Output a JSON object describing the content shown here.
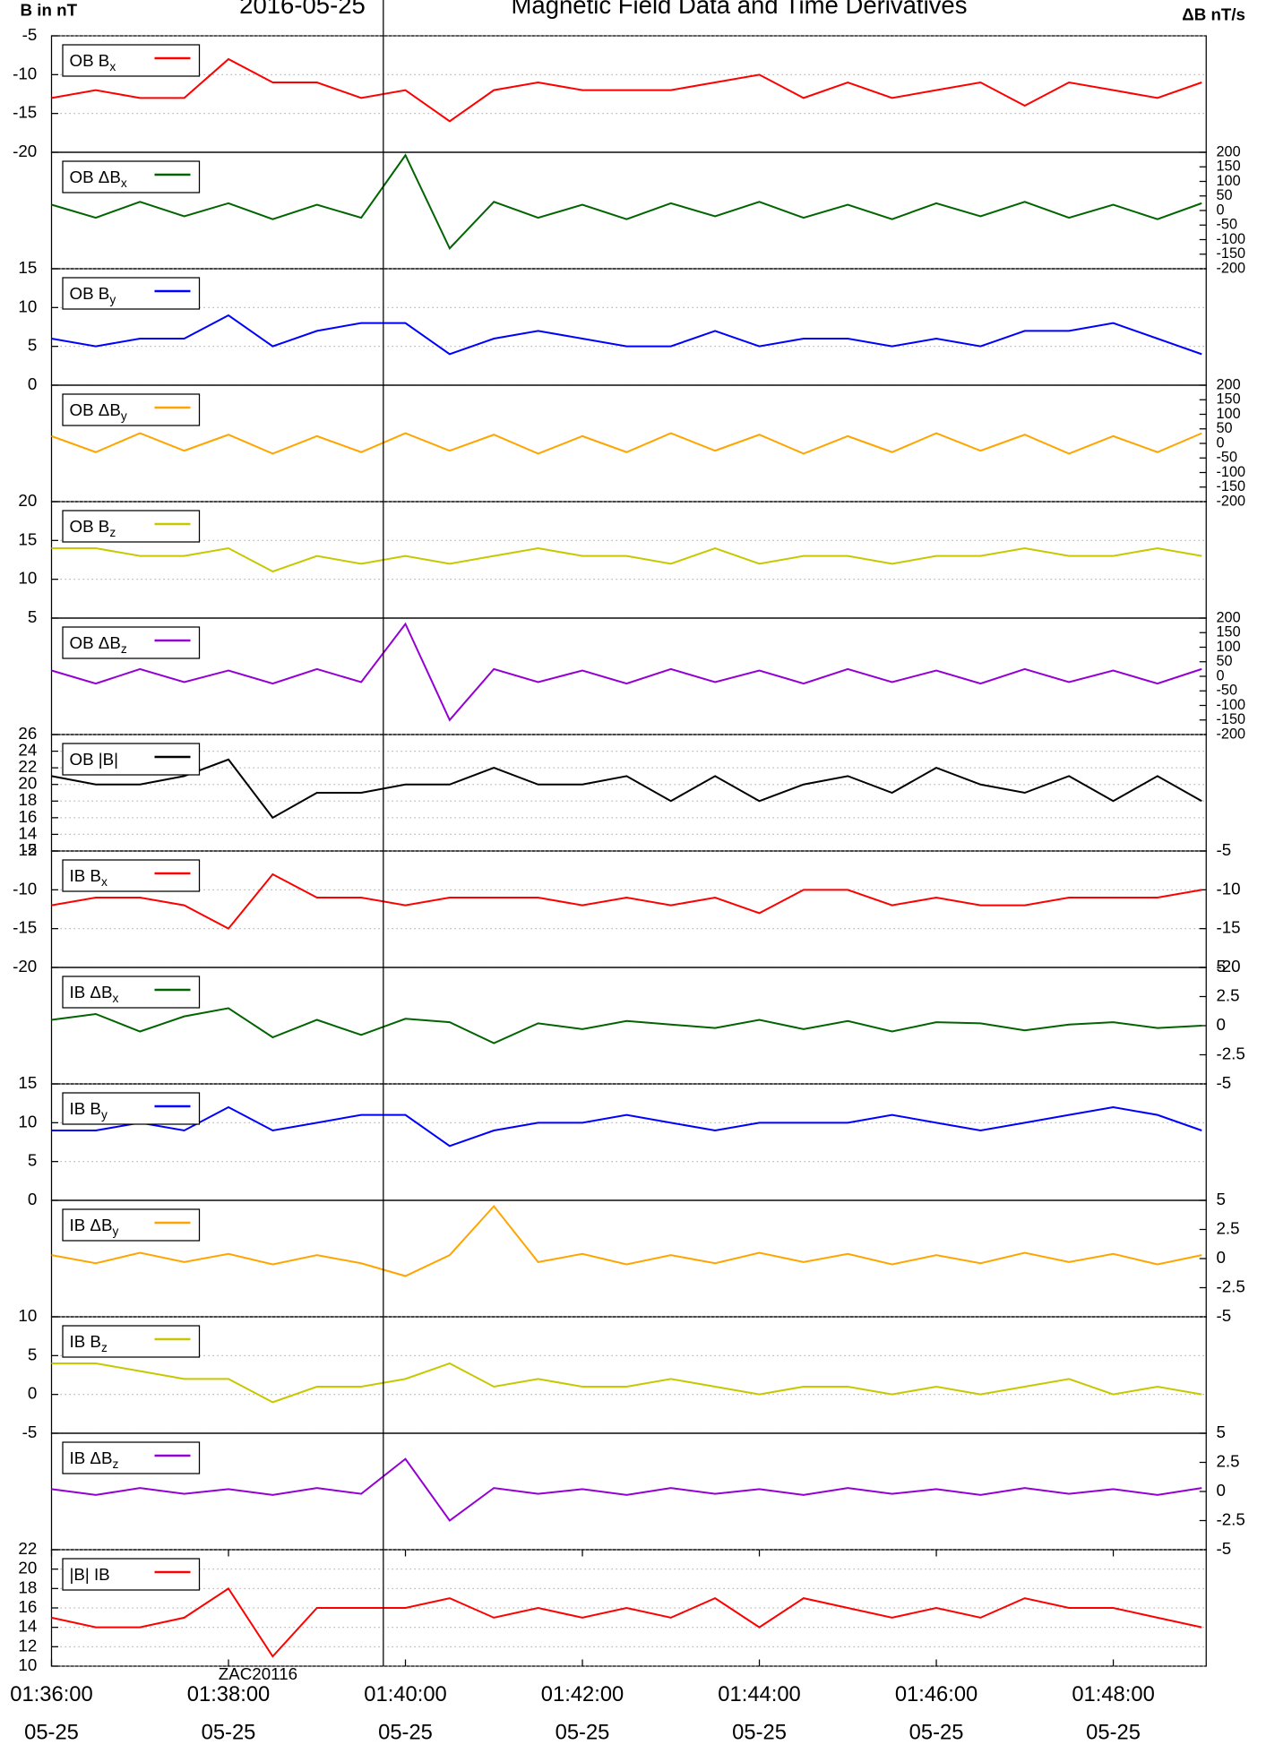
{
  "chart_data": {
    "type": "line",
    "title": "Magnetic Field Data and Time Derivatives",
    "date": "2016-05-25",
    "left_axis_label": "B in nT",
    "right_axis_label": "ΔB nT/s",
    "x": [
      "01:36:00",
      "01:36:30",
      "01:37:00",
      "01:37:30",
      "01:38:00",
      "01:38:30",
      "01:39:00",
      "01:39:30",
      "01:40:00",
      "01:40:30",
      "01:41:00",
      "01:41:30",
      "01:42:00",
      "01:42:30",
      "01:43:00",
      "01:43:30",
      "01:44:00",
      "01:44:30",
      "01:45:00",
      "01:45:30",
      "01:46:00",
      "01:46:30",
      "01:47:00",
      "01:47:30",
      "01:48:00",
      "01:48:30",
      "01:49:00"
    ],
    "xlim": [
      "01:36:00",
      "01:49:03"
    ],
    "xticks": [
      "01:36:00",
      "01:38:00",
      "01:40:00",
      "01:42:00",
      "01:44:00",
      "01:46:00",
      "01:48:00"
    ],
    "xtick_date": "05-25",
    "event_time": "01:39:45",
    "annotation": {
      "text": "ZAC20116",
      "x": "01:38:20"
    },
    "panels": [
      {
        "series": [
          {
            "name": "OB B",
            "name_sub": "x",
            "color": "#ff0000",
            "values": [
              -13,
              -12,
              -13,
              -13,
              -8,
              -11,
              -11,
              -13,
              -12,
              -16,
              -12,
              -11,
              -12,
              -12,
              -12,
              -11,
              -10,
              -13,
              -11,
              -13,
              -12,
              -11,
              -14,
              -11,
              -12,
              -13,
              -11
            ]
          }
        ],
        "ylim": [
          -20,
          -5
        ],
        "yticks": [
          -20,
          -15,
          -10,
          -5
        ],
        "yaxis": "left",
        "grid": true
      },
      {
        "series": [
          {
            "name": "OB ΔB",
            "name_sub": "x",
            "color": "#006400",
            "values": [
              20,
              -25,
              30,
              -20,
              25,
              -30,
              20,
              -25,
              190,
              -130,
              30,
              -25,
              20,
              -30,
              25,
              -20,
              30,
              -25,
              20,
              -30,
              25,
              -20,
              30,
              -25,
              20,
              -30,
              25
            ]
          }
        ],
        "ylim": [
          -200,
          200
        ],
        "yticks": [
          -200,
          -150,
          -100,
          -50,
          0,
          50,
          100,
          150,
          200
        ],
        "yaxis": "right",
        "grid": false
      },
      {
        "series": [
          {
            "name": "OB B",
            "name_sub": "y",
            "color": "#0000ff",
            "values": [
              6,
              5,
              6,
              6,
              9,
              5,
              7,
              8,
              8,
              4,
              6,
              7,
              6,
              5,
              5,
              7,
              5,
              6,
              6,
              5,
              6,
              5,
              7,
              7,
              8,
              6,
              4
            ]
          }
        ],
        "ylim": [
          0,
          15
        ],
        "yticks": [
          0,
          5,
          10,
          15
        ],
        "yaxis": "left",
        "grid": true
      },
      {
        "series": [
          {
            "name": "OB ΔB",
            "name_sub": "y",
            "color": "#ffa500",
            "values": [
              25,
              -30,
              35,
              -25,
              30,
              -35,
              25,
              -30,
              35,
              -25,
              30,
              -35,
              25,
              -30,
              35,
              -25,
              30,
              -35,
              25,
              -30,
              35,
              -25,
              30,
              -35,
              25,
              -30,
              35
            ]
          }
        ],
        "ylim": [
          -200,
          200
        ],
        "yticks": [
          -200,
          -150,
          -100,
          -50,
          0,
          50,
          100,
          150,
          200
        ],
        "yaxis": "right",
        "grid": false
      },
      {
        "series": [
          {
            "name": "OB B",
            "name_sub": "z",
            "color": "#c8c800",
            "values": [
              14,
              14,
              13,
              13,
              14,
              11,
              13,
              12,
              13,
              12,
              13,
              14,
              13,
              13,
              12,
              14,
              12,
              13,
              13,
              12,
              13,
              13,
              14,
              13,
              13,
              14,
              13
            ]
          }
        ],
        "ylim": [
          5,
          20
        ],
        "yticks": [
          5,
          10,
          15,
          20
        ],
        "yaxis": "left",
        "grid": true
      },
      {
        "series": [
          {
            "name": "OB ΔB",
            "name_sub": "z",
            "color": "#9400d3",
            "values": [
              20,
              -25,
              25,
              -20,
              20,
              -25,
              25,
              -20,
              180,
              -150,
              25,
              -20,
              20,
              -25,
              25,
              -20,
              20,
              -25,
              25,
              -20,
              20,
              -25,
              25,
              -20,
              20,
              -25,
              25
            ]
          }
        ],
        "ylim": [
          -200,
          200
        ],
        "yticks": [
          -200,
          -150,
          -100,
          -50,
          0,
          50,
          100,
          150,
          200
        ],
        "yaxis": "right",
        "grid": false
      },
      {
        "series": [
          {
            "name": "OB |B|",
            "color": "#000000",
            "values": [
              21,
              20,
              20,
              21,
              23,
              16,
              19,
              19,
              20,
              20,
              22,
              20,
              20,
              21,
              18,
              21,
              18,
              20,
              21,
              19,
              22,
              20,
              19,
              21,
              18,
              21,
              18
            ]
          }
        ],
        "ylim": [
          12,
          26
        ],
        "yticks": [
          12,
          14,
          16,
          18,
          20,
          22,
          24,
          26
        ],
        "yaxis": "left",
        "grid": true
      },
      {
        "series": [
          {
            "name": "IB B",
            "name_sub": "x",
            "color": "#ff0000",
            "values": [
              -12,
              -11,
              -11,
              -12,
              -15,
              -8,
              -11,
              -11,
              -12,
              -11,
              -11,
              -11,
              -12,
              -11,
              -12,
              -11,
              -13,
              -10,
              -10,
              -12,
              -11,
              -12,
              -12,
              -11,
              -11,
              -11,
              -10
            ]
          }
        ],
        "ylim": [
          -20,
          -5
        ],
        "yticks": [
          -20,
          -15,
          -10,
          -5
        ],
        "yaxis": "both",
        "grid": true
      },
      {
        "series": [
          {
            "name": "IB ΔB",
            "name_sub": "x",
            "color": "#006400",
            "values": [
              0.5,
              1,
              -0.5,
              0.8,
              1.5,
              -1,
              0.5,
              -0.8,
              0.6,
              0.3,
              -1.5,
              0.2,
              -0.3,
              0.4,
              0.1,
              -0.2,
              0.5,
              -0.3,
              0.4,
              -0.5,
              0.3,
              0.2,
              -0.4,
              0.1,
              0.3,
              -0.2,
              0
            ]
          }
        ],
        "ylim": [
          -5,
          5
        ],
        "yticks": [
          -5,
          -2.5,
          0,
          2.5,
          5
        ],
        "yaxis": "right",
        "grid": false
      },
      {
        "series": [
          {
            "name": "IB B",
            "name_sub": "y",
            "color": "#0000ff",
            "values": [
              9,
              9,
              10,
              9,
              12,
              9,
              10,
              11,
              11,
              7,
              9,
              10,
              10,
              11,
              10,
              9,
              10,
              10,
              10,
              11,
              10,
              9,
              10,
              11,
              12,
              11,
              9
            ]
          }
        ],
        "ylim": [
          0,
          15
        ],
        "yticks": [
          0,
          5,
          10,
          15
        ],
        "yaxis": "left",
        "grid": true
      },
      {
        "series": [
          {
            "name": "IB ΔB",
            "name_sub": "y",
            "color": "#ffa500",
            "values": [
              0.3,
              -0.4,
              0.5,
              -0.3,
              0.4,
              -0.5,
              0.3,
              -0.4,
              -1.5,
              0.3,
              4.5,
              -0.3,
              0.4,
              -0.5,
              0.3,
              -0.4,
              0.5,
              -0.3,
              0.4,
              -0.5,
              0.3,
              -0.4,
              0.5,
              -0.3,
              0.4,
              -0.5,
              0.3
            ]
          }
        ],
        "ylim": [
          -5,
          5
        ],
        "yticks": [
          -5,
          -2.5,
          0,
          2.5,
          5
        ],
        "yaxis": "right",
        "grid": false
      },
      {
        "series": [
          {
            "name": "IB B",
            "name_sub": "z",
            "color": "#c8c800",
            "values": [
              4,
              4,
              3,
              2,
              2,
              -1,
              1,
              1,
              2,
              4,
              1,
              2,
              1,
              1,
              2,
              1,
              0,
              1,
              1,
              0,
              1,
              0,
              1,
              2,
              0,
              1,
              0
            ]
          }
        ],
        "ylim": [
          -5,
          10
        ],
        "yticks": [
          -5,
          0,
          5,
          10
        ],
        "yaxis": "left",
        "grid": true
      },
      {
        "series": [
          {
            "name": "IB ΔB",
            "name_sub": "z",
            "color": "#9400d3",
            "values": [
              0.2,
              -0.3,
              0.3,
              -0.2,
              0.2,
              -0.3,
              0.3,
              -0.2,
              2.8,
              -2.5,
              0.3,
              -0.2,
              0.2,
              -0.3,
              0.3,
              -0.2,
              0.2,
              -0.3,
              0.3,
              -0.2,
              0.2,
              -0.3,
              0.3,
              -0.2,
              0.2,
              -0.3,
              0.3
            ]
          }
        ],
        "ylim": [
          -5,
          5
        ],
        "yticks": [
          -5,
          -2.5,
          0,
          2.5,
          5
        ],
        "yaxis": "right",
        "grid": false
      },
      {
        "series": [
          {
            "name": "|B| IB",
            "color": "#ff0000",
            "values": [
              15,
              14,
              14,
              15,
              18,
              11,
              16,
              16,
              16,
              17,
              15,
              16,
              15,
              16,
              15,
              17,
              14,
              17,
              16,
              15,
              16,
              15,
              17,
              16,
              16,
              15,
              14
            ]
          }
        ],
        "ylim": [
          10,
          22
        ],
        "yticks": [
          10,
          12,
          14,
          16,
          18,
          20,
          22
        ],
        "yaxis": "left",
        "grid": true
      }
    ]
  }
}
